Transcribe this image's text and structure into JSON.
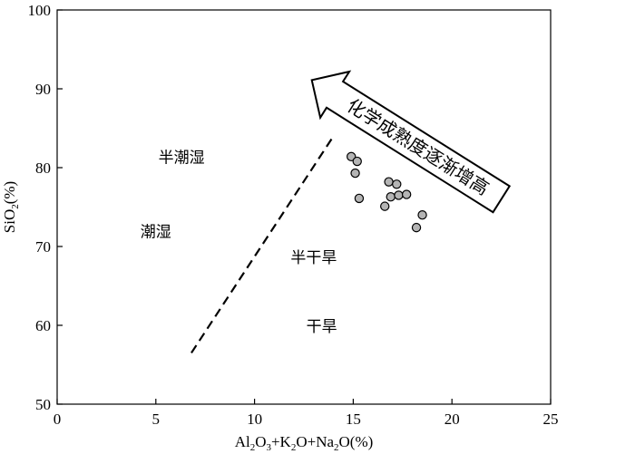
{
  "chart_data": {
    "type": "scatter",
    "title": "",
    "xlabel": {
      "parts": [
        "Al",
        "2",
        "O",
        "3",
        "+K",
        "2",
        "O+Na",
        "2",
        "O(%)"
      ]
    },
    "ylabel": {
      "parts": [
        "SiO",
        "2",
        "(%)"
      ]
    },
    "xlim": [
      0,
      25
    ],
    "ylim": [
      50,
      100
    ],
    "x_ticks": [
      0,
      5,
      10,
      15,
      20,
      25
    ],
    "y_ticks": [
      50,
      60,
      70,
      80,
      90,
      100
    ],
    "grid": false,
    "points": [
      {
        "x": 14.9,
        "y": 81.4
      },
      {
        "x": 15.2,
        "y": 80.8
      },
      {
        "x": 15.1,
        "y": 79.3
      },
      {
        "x": 15.3,
        "y": 76.1
      },
      {
        "x": 16.8,
        "y": 78.2
      },
      {
        "x": 17.2,
        "y": 77.9
      },
      {
        "x": 16.9,
        "y": 76.3
      },
      {
        "x": 17.3,
        "y": 76.5
      },
      {
        "x": 17.7,
        "y": 76.6
      },
      {
        "x": 16.6,
        "y": 75.1
      },
      {
        "x": 18.5,
        "y": 74.0
      },
      {
        "x": 18.2,
        "y": 72.4
      }
    ],
    "divider_line": {
      "style": "dashed",
      "from": {
        "x": 6.8,
        "y": 56.5
      },
      "to": {
        "x": 14.0,
        "y": 84.0
      }
    },
    "regions": [
      {
        "label": "半潮湿",
        "x": 6.3,
        "y": 81.3
      },
      {
        "label": "潮湿",
        "x": 5.0,
        "y": 71.9
      },
      {
        "label": "半干旱",
        "x": 13.0,
        "y": 68.6
      },
      {
        "label": "干旱",
        "x": 13.4,
        "y": 59.9
      }
    ],
    "arrow": {
      "label": "化学成熟度逐渐增高",
      "from": {
        "x": 22.5,
        "y": 76.0
      },
      "to": {
        "x": 12.9,
        "y": 91.1
      }
    },
    "colors": {
      "point_fill": "#b4b4b4",
      "stroke": "#000000",
      "background": "#ffffff"
    }
  }
}
